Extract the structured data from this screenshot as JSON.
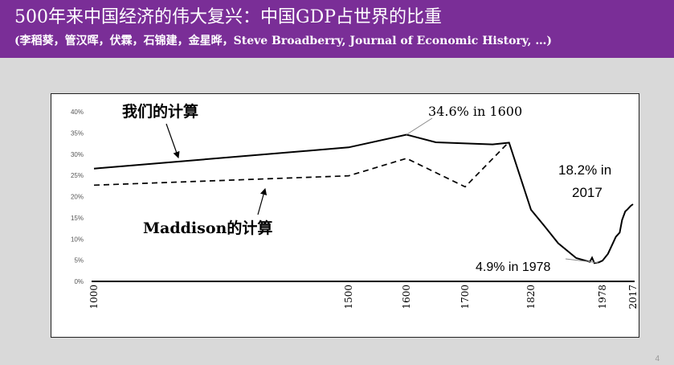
{
  "slide": {
    "title": "500年来中国经济的伟大复兴：中国GDP占世界的比重",
    "subtitle": "(李稻葵，管汉晖，伏霖，石锦建，金星晔，Steve Broadberry, Journal of Economic History, …)",
    "page_number": "4"
  },
  "colors": {
    "header_bg": "#7a2e97",
    "header_text": "#ffffff",
    "line": "#000000",
    "background": "#d9d9d9"
  },
  "chart_data": {
    "type": "line",
    "x_categories": [
      "1000",
      "1500",
      "1600",
      "1700",
      "1820",
      "1978",
      "2017"
    ],
    "y_ticks": [
      "0%",
      "5%",
      "10%",
      "15%",
      "20%",
      "25%",
      "30%",
      "35%",
      "40%"
    ],
    "ylim": [
      0,
      40
    ],
    "grid": false,
    "series": [
      {
        "name": "我们的计算",
        "style": "solid",
        "points": [
          [
            1000,
            26.6
          ],
          [
            1500,
            31.6
          ],
          [
            1600,
            34.6
          ],
          [
            1650,
            32.8
          ],
          [
            1750,
            32.3
          ],
          [
            1780,
            32.7
          ],
          [
            1820,
            16.9
          ],
          [
            1850,
            13.0
          ],
          [
            1880,
            9.0
          ],
          [
            1920,
            5.5
          ],
          [
            1950,
            4.6
          ],
          [
            1955,
            5.6
          ],
          [
            1960,
            4.3
          ],
          [
            1970,
            4.5
          ],
          [
            1978,
            4.9
          ],
          [
            1985,
            6.5
          ],
          [
            1990,
            8.5
          ],
          [
            1995,
            10.5
          ],
          [
            2000,
            11.5
          ],
          [
            2003,
            14.5
          ],
          [
            2007,
            16.5
          ],
          [
            2010,
            17.0
          ],
          [
            2014,
            17.8
          ],
          [
            2017,
            18.2
          ]
        ]
      },
      {
        "name": "Maddison的计算",
        "style": "dashed",
        "points": [
          [
            1000,
            22.7
          ],
          [
            1500,
            24.9
          ],
          [
            1600,
            29.0
          ],
          [
            1700,
            22.3
          ],
          [
            1780,
            32.9
          ]
        ]
      }
    ],
    "annotations": {
      "ours": "我们的计算",
      "maddison": "Maddison的计算",
      "peak": "34.6% in 1600",
      "value_2017_line1": "18.2% in",
      "value_2017_line2": "2017",
      "low": "4.9% in 1978"
    }
  }
}
